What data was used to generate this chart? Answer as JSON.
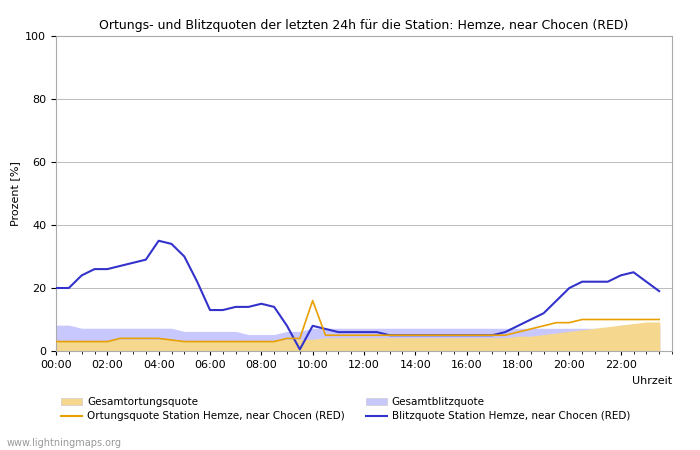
{
  "title": "Ortungs- und Blitzquoten der letzten 24h für die Station: Hemze, near Chocen (RED)",
  "ylabel": "Prozent [%]",
  "xlabel": "Uhrzeit",
  "watermark": "www.lightningmaps.org",
  "xlim": [
    0,
    24
  ],
  "ylim": [
    0,
    100
  ],
  "yticks": [
    0,
    20,
    40,
    60,
    80,
    100
  ],
  "xtick_labels": [
    "00:00",
    "02:00",
    "04:00",
    "06:00",
    "08:00",
    "10:00",
    "12:00",
    "14:00",
    "16:00",
    "18:00",
    "20:00",
    "22:00"
  ],
  "background_color": "#ffffff",
  "plot_bg_color": "#ffffff",
  "legend_items": [
    {
      "label": "Gesamtortungsquote",
      "color": "#f5d78e",
      "type": "fill"
    },
    {
      "label": "Ortungsquote Station Hemze, near Chocen (RED)",
      "color": "#e8a000",
      "type": "line"
    },
    {
      "label": "Gesamtblitzquote",
      "color": "#c8c8ff",
      "type": "fill"
    },
    {
      "label": "Blitzquote Station Hemze, near Chocen (RED)",
      "color": "#3333cc",
      "type": "line"
    }
  ],
  "x_hours": [
    0,
    0.5,
    1,
    1.5,
    2,
    2.5,
    3,
    3.5,
    4,
    4.5,
    5,
    5.5,
    6,
    6.5,
    7,
    7.5,
    8,
    8.5,
    9,
    9.5,
    10,
    10.5,
    11,
    11.5,
    12,
    12.5,
    13,
    13.5,
    14,
    14.5,
    15,
    15.5,
    16,
    16.5,
    17,
    17.5,
    18,
    18.5,
    19,
    19.5,
    20,
    20.5,
    21,
    21.5,
    22,
    22.5,
    23,
    23.5
  ],
  "gesamtortung": [
    3,
    3,
    3,
    3,
    3,
    3.5,
    3.5,
    3.5,
    3.5,
    3.5,
    3,
    3,
    3,
    3,
    3,
    3,
    3,
    3,
    3.5,
    3.5,
    3.5,
    4,
    4,
    4,
    4,
    4,
    4,
    4,
    4,
    4,
    4,
    4,
    4,
    4,
    4,
    4,
    4.5,
    4.5,
    5,
    5.5,
    6,
    6.5,
    7,
    7.5,
    8,
    8.5,
    9,
    9
  ],
  "ortungsquote": [
    3,
    3,
    3,
    3,
    3,
    4,
    4,
    4,
    4,
    3.5,
    3,
    3,
    3,
    3,
    3,
    3,
    3,
    3,
    4,
    4,
    16,
    5,
    5,
    5,
    5,
    5,
    5,
    5,
    5,
    5,
    5,
    5,
    5,
    5,
    5,
    5,
    6,
    7,
    8,
    9,
    9,
    10,
    10,
    10,
    10,
    10,
    10,
    10
  ],
  "gesamtblitz": [
    8,
    8,
    7,
    7,
    7,
    7,
    7,
    7,
    7,
    7,
    6,
    6,
    6,
    6,
    6,
    5,
    5,
    5,
    6,
    6,
    7,
    7,
    7,
    7,
    7,
    7,
    7,
    7,
    7,
    7,
    7,
    7,
    7,
    7,
    7,
    7,
    7,
    7,
    7,
    7,
    7,
    7,
    7,
    7,
    8,
    8,
    8,
    8
  ],
  "blitzquote": [
    20,
    20,
    24,
    26,
    26,
    27,
    28,
    29,
    35,
    34,
    30,
    22,
    13,
    13,
    14,
    14,
    15,
    14,
    8,
    0.5,
    8,
    7,
    6,
    6,
    6,
    6,
    5,
    5,
    5,
    5,
    5,
    5,
    5,
    5,
    5,
    6,
    8,
    10,
    12,
    16,
    20,
    22,
    22,
    22,
    24,
    25,
    22,
    19
  ]
}
